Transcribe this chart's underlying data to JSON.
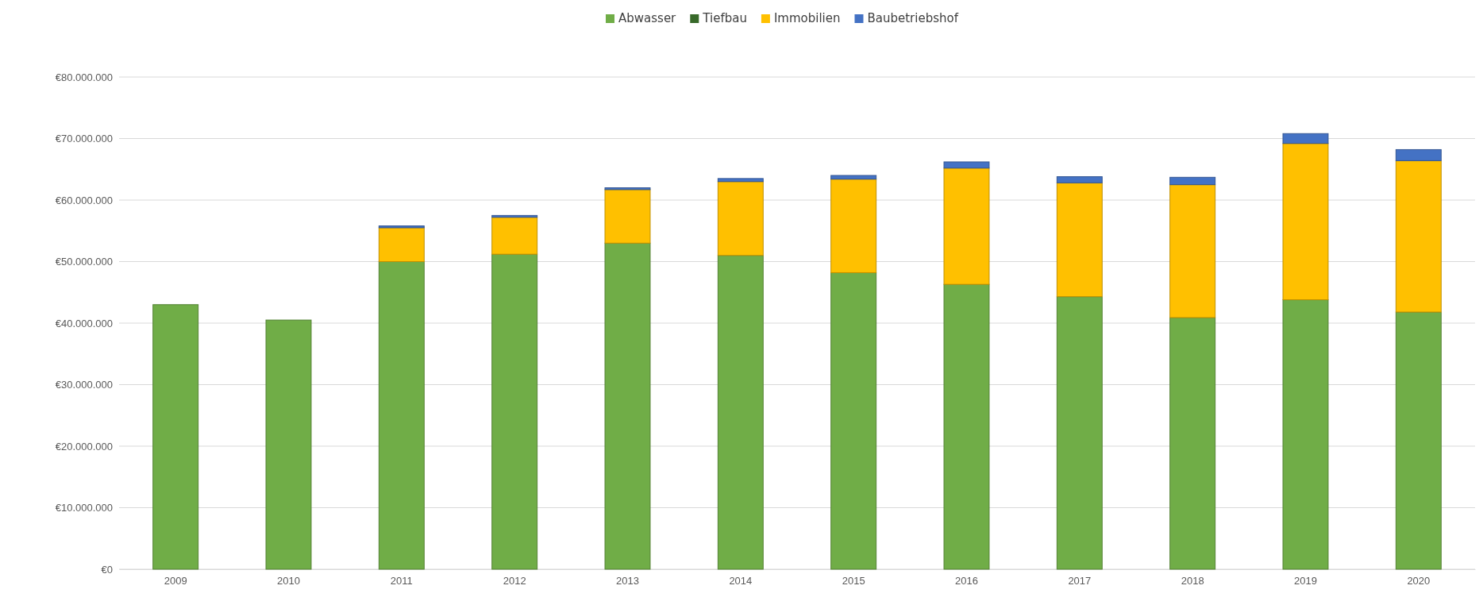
{
  "chart_data": {
    "type": "bar",
    "stacked": true,
    "legend": "top",
    "grid": "y",
    "categories": [
      "2009",
      "2010",
      "2011",
      "2012",
      "2013",
      "2014",
      "2015",
      "2016",
      "2017",
      "2018",
      "2019",
      "2020"
    ],
    "series": [
      {
        "name": "Abwasser",
        "color": "#70ad47",
        "values": [
          43000000,
          40500000,
          50000000,
          51200000,
          53000000,
          51000000,
          48200000,
          46300000,
          44300000,
          40900000,
          43800000,
          41800000
        ]
      },
      {
        "name": "Tiefbau",
        "color": "#38692a",
        "values": [
          null,
          null,
          null,
          null,
          null,
          null,
          null,
          null,
          null,
          null,
          null,
          null
        ]
      },
      {
        "name": "Immobilien",
        "color": "#ffc000",
        "values": [
          null,
          null,
          5500000,
          6000000,
          8700000,
          12000000,
          15200000,
          18900000,
          18500000,
          21600000,
          25400000,
          24600000
        ]
      },
      {
        "name": "Baubetriebshof",
        "color": "#4472c4",
        "values": [
          null,
          null,
          300000,
          300000,
          300000,
          500000,
          600000,
          1000000,
          1000000,
          1200000,
          1600000,
          1800000
        ]
      }
    ],
    "ylim": [
      0,
      80000000
    ],
    "yticks": [
      {
        "value": 0,
        "label": "€0"
      },
      {
        "value": 10000000,
        "label": "€10.000.000"
      },
      {
        "value": 20000000,
        "label": "€20.000.000"
      },
      {
        "value": 30000000,
        "label": "€30.000.000"
      },
      {
        "value": 40000000,
        "label": "€40.000.000"
      },
      {
        "value": 50000000,
        "label": "€50.000.000"
      },
      {
        "value": 60000000,
        "label": "€60.000.000"
      },
      {
        "value": 70000000,
        "label": "€70.000.000"
      },
      {
        "value": 80000000,
        "label": "€80.000.000"
      }
    ]
  }
}
